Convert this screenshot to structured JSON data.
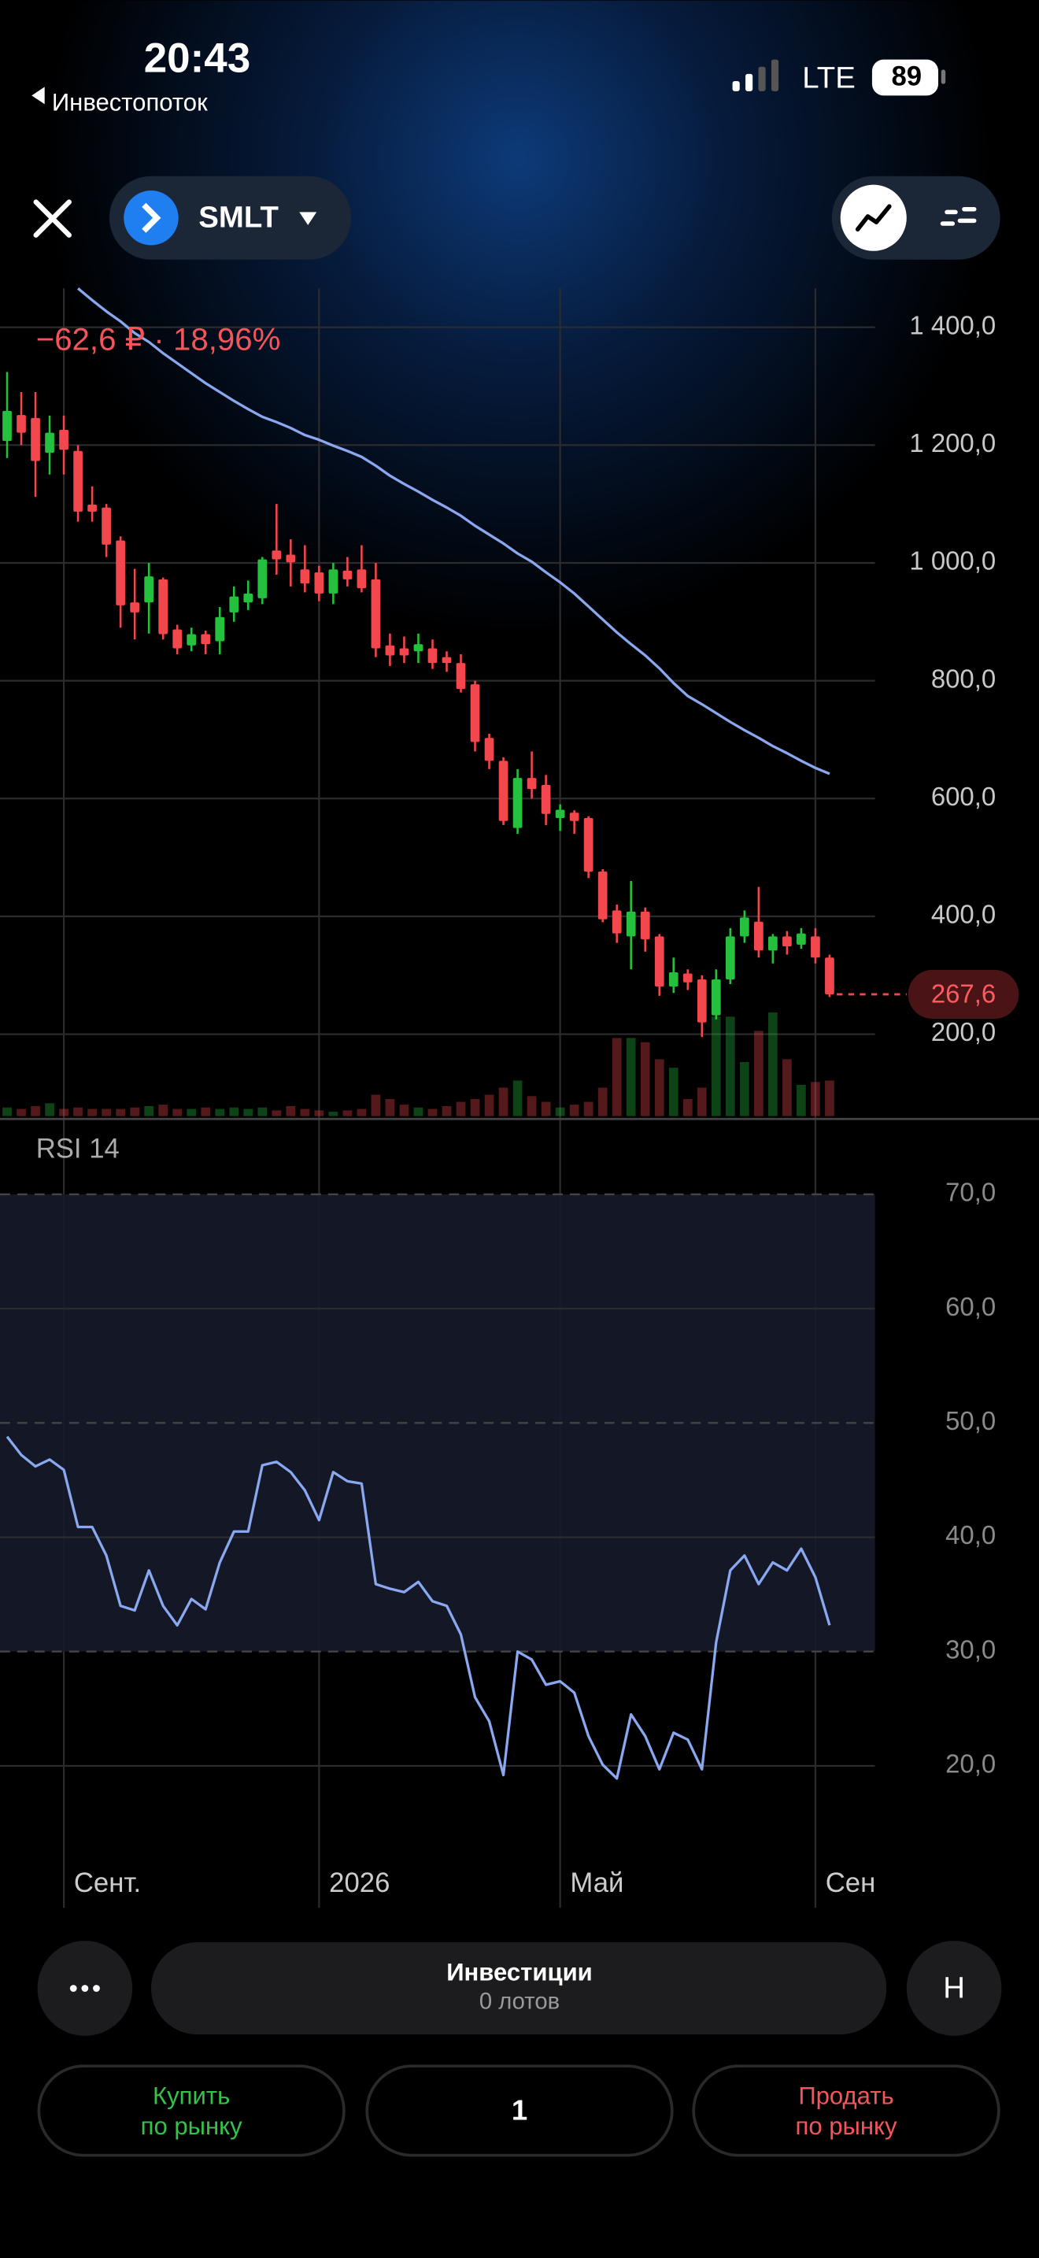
{
  "status_bar": {
    "time": "20:43",
    "back": "Инвестопоток",
    "network": "LTE",
    "battery": "89"
  },
  "header": {
    "ticker": "SMLT"
  },
  "chart_data": {
    "type": "candlestick",
    "subtitle": "−62,6 ₽ · 18,96%",
    "categories": [
      null,
      null,
      null,
      null,
      "Сент.",
      null,
      null,
      null,
      null,
      null,
      null,
      null,
      null,
      null,
      null,
      null,
      null,
      null,
      null,
      null,
      null,
      null,
      "2026",
      null,
      null,
      null,
      null,
      null,
      null,
      null,
      null,
      null,
      null,
      null,
      null,
      null,
      null,
      null,
      null,
      "Май",
      null,
      null,
      null,
      null,
      null,
      null,
      null,
      null,
      null,
      null,
      null,
      null,
      null,
      null,
      null,
      null,
      null,
      "Сен",
      null
    ],
    "xlim": [
      -0.5,
      61.2
    ],
    "open": [
      1207,
      1251,
      1246,
      1187,
      1226,
      1190,
      1099,
      1094,
      1038,
      933,
      933,
      972,
      887,
      860,
      879,
      867,
      916,
      933,
      940,
      1021,
      1014,
      989,
      984,
      948,
      987,
      989,
      972,
      860,
      855,
      850,
      855,
      840,
      830,
      794,
      703,
      664,
      550,
      635,
      623,
      567,
      576,
      567,
      476,
      410,
      366,
      408,
      366,
      281,
      303,
      293,
      232,
      293,
      366,
      391,
      342,
      366,
      352,
      366,
      330
    ],
    "high": [
      1324,
      1290,
      1290,
      1250,
      1250,
      1200,
      1130,
      1100,
      1045,
      990,
      1000,
      975,
      895,
      890,
      885,
      925,
      960,
      970,
      1010,
      1100,
      1040,
      1030,
      995,
      1000,
      1010,
      1030,
      1000,
      880,
      875,
      880,
      870,
      850,
      845,
      800,
      710,
      670,
      650,
      680,
      640,
      590,
      580,
      570,
      480,
      420,
      460,
      415,
      370,
      330,
      310,
      300,
      310,
      380,
      410,
      450,
      370,
      375,
      380,
      380,
      335
    ],
    "low": [
      1178,
      1200,
      1112,
      1150,
      1150,
      1070,
      1070,
      1010,
      890,
      870,
      880,
      870,
      845,
      850,
      845,
      845,
      900,
      920,
      930,
      980,
      960,
      950,
      935,
      930,
      960,
      950,
      840,
      825,
      830,
      830,
      820,
      815,
      780,
      680,
      650,
      555,
      540,
      600,
      555,
      545,
      540,
      465,
      390,
      355,
      310,
      340,
      265,
      270,
      275,
      195,
      225,
      285,
      355,
      330,
      320,
      335,
      345,
      320,
      263
    ],
    "close": [
      1258,
      1221,
      1173,
      1221,
      1192,
      1087,
      1087,
      1031,
      928,
      916,
      977,
      879,
      855,
      879,
      862,
      908,
      943,
      948,
      1006,
      1006,
      1001,
      965,
      948,
      989,
      972,
      957,
      855,
      843,
      843,
      862,
      830,
      830,
      786,
      696,
      664,
      562,
      635,
      616,
      574,
      581,
      562,
      476,
      395,
      371,
      408,
      361,
      281,
      305,
      288,
      220,
      293,
      366,
      398,
      342,
      366,
      349,
      371,
      330,
      267.6
    ],
    "volume": [
      6,
      5,
      7,
      9,
      5,
      6,
      5,
      5,
      5,
      6,
      7,
      8,
      5,
      5,
      6,
      5,
      6,
      5,
      6,
      4,
      7,
      5,
      4,
      3,
      4,
      5,
      15,
      12,
      8,
      6,
      5,
      7,
      10,
      12,
      15,
      20,
      25,
      14,
      10,
      6,
      8,
      10,
      20,
      55,
      55,
      52,
      40,
      34,
      12,
      20,
      70,
      70,
      38,
      60,
      73,
      40,
      22,
      24,
      25
    ],
    "up_color": "#25c13e",
    "down_color": "#f2474c",
    "ma": {
      "color": "#8aa8f0",
      "values": [
        null,
        null,
        null,
        null,
        null,
        1466,
        1446,
        1427,
        1410,
        1390,
        1375,
        1356,
        1339,
        1322,
        1305,
        1290,
        1275,
        1261,
        1248,
        1239,
        1229,
        1217,
        1209,
        1199,
        1190,
        1180,
        1165,
        1148,
        1134,
        1121,
        1107,
        1094,
        1080,
        1063,
        1048,
        1033,
        1016,
        1002,
        984,
        967,
        948,
        926,
        904,
        882,
        862,
        843,
        821,
        796,
        774,
        760,
        745,
        730,
        716,
        703,
        689,
        677,
        664,
        652,
        642
      ]
    },
    "ylim": [
      61,
      1466
    ],
    "yticks": [
      {
        "value": 1400,
        "label": "1 400,0"
      },
      {
        "value": 1200,
        "label": "1 200,0"
      },
      {
        "value": 1000,
        "label": "1 000,0"
      },
      {
        "value": 800,
        "label": "800,0"
      },
      {
        "value": 600,
        "label": "600,0"
      },
      {
        "value": 400,
        "label": "400,0"
      },
      {
        "value": 200,
        "label": "200,0"
      }
    ],
    "last_price": {
      "value": 267.6,
      "label": "267,6"
    },
    "grid": true,
    "rsi": {
      "name": "RSI 14",
      "color": "#8aa8f0",
      "values": [
        48.8,
        47.2,
        46.2,
        46.8,
        45.9,
        40.9,
        40.9,
        38.4,
        34.0,
        33.6,
        37.1,
        34.0,
        32.3,
        34.6,
        33.7,
        37.8,
        40.5,
        40.5,
        46.3,
        46.6,
        45.7,
        44.1,
        41.5,
        45.7,
        44.9,
        44.7,
        35.9,
        35.5,
        35.2,
        36.1,
        34.4,
        34.0,
        31.5,
        26.0,
        23.9,
        19.2,
        30.0,
        29.3,
        27.1,
        27.4,
        26.4,
        22.6,
        20.1,
        18.9,
        24.5,
        22.6,
        19.7,
        22.9,
        22.3,
        19.7,
        30.8,
        37.1,
        38.4,
        35.9,
        37.8,
        37.1,
        39.0,
        36.5,
        32.3
      ],
      "ylim": [
        12,
        73.7
      ],
      "yticks": [
        {
          "value": 70,
          "label": "70,0"
        },
        {
          "value": 60,
          "label": "60,0"
        },
        {
          "value": 50,
          "label": "50,0"
        },
        {
          "value": 40,
          "label": "40,0"
        },
        {
          "value": 30,
          "label": "30,0"
        },
        {
          "value": 20,
          "label": "20,0"
        }
      ],
      "levels": [
        70,
        50,
        30
      ]
    }
  },
  "footer": {
    "position_title": "Инвестиции",
    "position_lots": "0 лотов",
    "mode": "Н",
    "buy": [
      "Купить",
      "по рынку"
    ],
    "quantity": "1",
    "sell": [
      "Продать",
      "по рынку"
    ]
  }
}
